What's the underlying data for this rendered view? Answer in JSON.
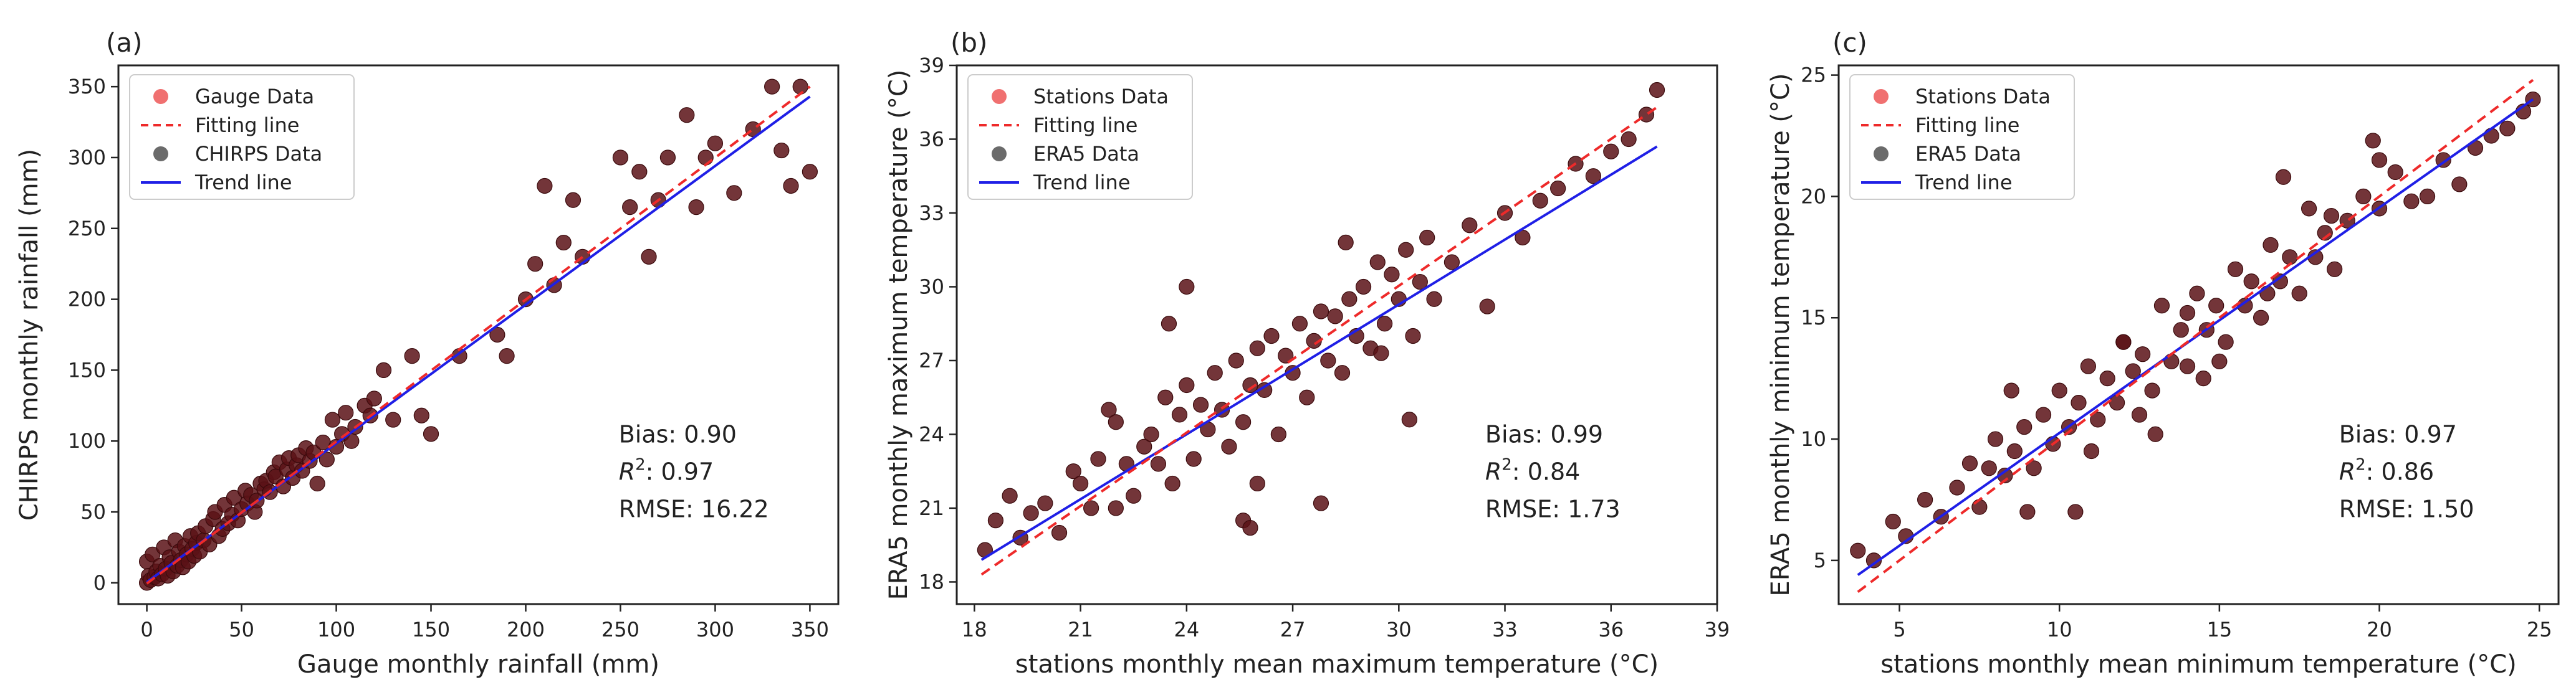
{
  "chart_data": [
    {
      "type": "scatter",
      "panel_label": "(a)",
      "xlabel": "Gauge monthly rainfall (mm)",
      "ylabel": "CHIRPS monthly rainfall (mm)",
      "xlim": [
        -15,
        365
      ],
      "ylim": [
        -15,
        365
      ],
      "xticks": [
        0,
        50,
        100,
        150,
        200,
        250,
        300,
        350
      ],
      "yticks": [
        0,
        50,
        100,
        150,
        200,
        250,
        300,
        350
      ],
      "legend": {
        "position": "top-left",
        "entries": [
          "Gauge Data",
          "Fitting line",
          "CHIRPS Data",
          "Trend line"
        ]
      },
      "stats": {
        "bias": "Bias: 0.90",
        "r2_value": ": 0.97",
        "rmse": "RMSE: 16.22"
      },
      "fitting_line": {
        "x": [
          0,
          350
        ],
        "y": [
          -0.5,
          350
        ]
      },
      "trend_line": {
        "x": [
          0,
          350
        ],
        "y": [
          0.5,
          343
        ]
      },
      "points": {
        "x": [
          0,
          0,
          1,
          2,
          3,
          4,
          5,
          6,
          7,
          8,
          9,
          10,
          11,
          12,
          13,
          14,
          15,
          16,
          17,
          18,
          19,
          20,
          21,
          22,
          23,
          24,
          25,
          26,
          27,
          28,
          30,
          31,
          33,
          35,
          36,
          38,
          40,
          41,
          43,
          45,
          46,
          48,
          50,
          52,
          53,
          55,
          57,
          58,
          60,
          62,
          63,
          65,
          67,
          68,
          70,
          72,
          74,
          75,
          77,
          79,
          80,
          82,
          84,
          86,
          88,
          90,
          93,
          95,
          98,
          100,
          103,
          105,
          108,
          110,
          115,
          118,
          120,
          125,
          130,
          140,
          145,
          150,
          165,
          185,
          190,
          200,
          205,
          210,
          215,
          220,
          225,
          230,
          250,
          255,
          260,
          265,
          270,
          275,
          285,
          290,
          295,
          300,
          310,
          320,
          330,
          335,
          340,
          345,
          350
        ],
        "y": [
          0,
          15,
          5,
          2,
          20,
          4,
          8,
          3,
          12,
          6,
          25,
          10,
          5,
          18,
          14,
          8,
          30,
          12,
          22,
          16,
          11,
          26,
          20,
          15,
          33,
          24,
          19,
          28,
          35,
          22,
          30,
          40,
          27,
          45,
          50,
          33,
          38,
          55,
          42,
          48,
          60,
          44,
          52,
          65,
          56,
          62,
          50,
          58,
          70,
          66,
          72,
          64,
          78,
          75,
          85,
          68,
          80,
          88,
          74,
          83,
          90,
          79,
          95,
          86,
          92,
          70,
          99,
          87,
          115,
          96,
          105,
          120,
          100,
          110,
          125,
          118,
          130,
          150,
          115,
          160,
          118,
          105,
          160,
          175,
          160,
          200,
          225,
          280,
          210,
          240,
          270,
          230,
          300,
          265,
          290,
          230,
          270,
          300,
          330,
          265,
          300,
          310,
          275,
          320,
          350,
          305,
          280,
          350,
          290
        ]
      }
    },
    {
      "type": "scatter",
      "panel_label": "(b)",
      "xlabel": "stations monthly mean maximum temperature (°C)",
      "ylabel": "ERA5 monthly maximum temperature (°C)",
      "xlim": [
        17.5,
        39
      ],
      "ylim": [
        17.1,
        39
      ],
      "xticks": [
        18,
        21,
        24,
        27,
        30,
        33,
        36,
        39
      ],
      "yticks": [
        18,
        21,
        24,
        27,
        30,
        33,
        36,
        39
      ],
      "legend": {
        "position": "top-left",
        "entries": [
          "Stations Data",
          "Fitting line",
          "ERA5 Data",
          "Trend line"
        ]
      },
      "stats": {
        "bias": "Bias: 0.99",
        "r2_value": ": 0.84",
        "rmse": "RMSE: 1.73"
      },
      "fitting_line": {
        "x": [
          18.2,
          37.3
        ],
        "y": [
          18.3,
          37.3
        ]
      },
      "trend_line": {
        "x": [
          18.2,
          37.3
        ],
        "y": [
          18.9,
          35.7
        ]
      },
      "points": {
        "x": [
          18.3,
          18.6,
          19.0,
          19.3,
          19.6,
          20.0,
          20.4,
          20.8,
          21.0,
          21.3,
          21.5,
          21.8,
          22.0,
          22.3,
          22.5,
          22.8,
          23.0,
          23.2,
          23.4,
          23.6,
          23.8,
          24.0,
          24.2,
          24.4,
          24.6,
          24.8,
          25.0,
          25.2,
          25.4,
          25.6,
          25.8,
          26.0,
          26.2,
          26.4,
          26.6,
          26.8,
          27.0,
          27.2,
          27.4,
          27.6,
          27.8,
          28.0,
          28.2,
          28.4,
          28.6,
          28.8,
          29.0,
          29.2,
          29.4,
          29.6,
          29.8,
          30.0,
          30.2,
          30.4,
          30.6,
          30.8,
          31.0,
          31.5,
          32.0,
          32.5,
          33.0,
          33.5,
          34.0,
          34.5,
          35.0,
          35.5,
          36.0,
          36.5,
          37.0,
          37.3,
          25.6,
          25.8,
          27.8,
          30.3,
          24.0,
          23.5,
          22.0,
          26.0,
          28.5,
          29.5
        ],
        "y": [
          19.3,
          20.5,
          21.5,
          19.8,
          20.8,
          21.2,
          20.0,
          22.5,
          22.0,
          21.0,
          23.0,
          25.0,
          24.5,
          22.8,
          21.5,
          23.5,
          24.0,
          22.8,
          25.5,
          22.0,
          24.8,
          26.0,
          23.0,
          25.2,
          24.2,
          26.5,
          25.0,
          23.5,
          27.0,
          24.5,
          26.0,
          27.5,
          25.8,
          28.0,
          24.0,
          27.2,
          26.5,
          28.5,
          25.5,
          27.8,
          29.0,
          27.0,
          28.8,
          26.5,
          29.5,
          28.0,
          30.0,
          27.5,
          31.0,
          28.5,
          30.5,
          29.5,
          31.5,
          28.0,
          30.2,
          32.0,
          29.5,
          31.0,
          32.5,
          29.2,
          33.0,
          32.0,
          33.5,
          34.0,
          35.0,
          34.5,
          35.5,
          36.0,
          37.0,
          38.0,
          20.5,
          20.2,
          21.2,
          24.6,
          30.0,
          28.5,
          21.0,
          22.0,
          31.8,
          27.3
        ]
      }
    },
    {
      "type": "scatter",
      "panel_label": "(c)",
      "xlabel": "stations monthly mean minimum temperature (°C)",
      "ylabel": "ERA5 monthly minimum temperature (°C)",
      "xlim": [
        3.1,
        25.6
      ],
      "ylim": [
        3.2,
        25.4
      ],
      "xticks": [
        5,
        10,
        15,
        20,
        25
      ],
      "yticks": [
        5,
        10,
        15,
        20,
        25
      ],
      "legend": {
        "position": "top-left",
        "entries": [
          "Stations Data",
          "Fitting line",
          "ERA5 Data",
          "Trend line"
        ]
      },
      "stats": {
        "bias": "Bias: 0.97",
        "r2_value": ": 0.86",
        "rmse": "RMSE: 1.50"
      },
      "fitting_line": {
        "x": [
          3.7,
          24.8
        ],
        "y": [
          3.7,
          24.8
        ]
      },
      "trend_line": {
        "x": [
          3.7,
          24.8
        ],
        "y": [
          4.4,
          24.0
        ]
      },
      "points": {
        "x": [
          3.7,
          4.2,
          4.8,
          5.2,
          5.8,
          6.3,
          6.8,
          7.2,
          7.5,
          7.8,
          8.0,
          8.3,
          8.6,
          8.9,
          9.2,
          9.5,
          9.8,
          10.0,
          10.3,
          10.6,
          10.9,
          11.2,
          11.5,
          11.8,
          12.0,
          12.3,
          12.6,
          12.9,
          13.2,
          13.5,
          13.8,
          14.0,
          14.3,
          14.6,
          14.9,
          15.2,
          15.5,
          15.8,
          16.0,
          16.3,
          16.6,
          16.9,
          17.2,
          17.5,
          17.8,
          18.0,
          18.3,
          18.6,
          19.0,
          19.5,
          20.0,
          20.5,
          21.0,
          21.5,
          22.0,
          22.5,
          23.0,
          23.5,
          24.0,
          24.5,
          24.8,
          10.5,
          11.0,
          12.5,
          13.0,
          14.5,
          15.0,
          16.5,
          17.0,
          18.5,
          19.8,
          20.0,
          9.0,
          8.5,
          12.0,
          14.0
        ],
        "y": [
          5.4,
          5.0,
          6.6,
          6.0,
          7.5,
          6.8,
          8.0,
          9.0,
          7.2,
          8.8,
          10.0,
          8.5,
          9.5,
          10.5,
          8.8,
          11.0,
          9.8,
          12.0,
          10.5,
          11.5,
          13.0,
          10.8,
          12.5,
          11.5,
          14.0,
          12.8,
          13.5,
          12.0,
          15.5,
          13.2,
          14.5,
          13.0,
          16.0,
          14.5,
          15.5,
          14.0,
          17.0,
          15.5,
          16.5,
          15.0,
          18.0,
          16.5,
          17.5,
          16.0,
          19.5,
          17.5,
          18.5,
          17.0,
          19.0,
          20.0,
          19.5,
          21.0,
          19.8,
          20.0,
          21.5,
          20.5,
          22.0,
          22.5,
          22.8,
          23.5,
          24.0,
          7.0,
          9.5,
          11.0,
          10.2,
          12.5,
          13.2,
          16.0,
          20.8,
          19.2,
          22.3,
          21.5,
          7.0,
          12.0,
          14.0,
          15.2
        ]
      }
    }
  ]
}
